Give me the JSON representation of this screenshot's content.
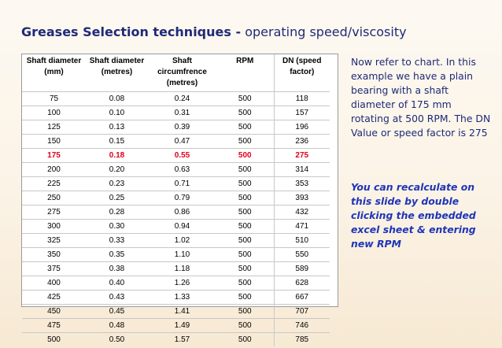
{
  "title": {
    "bold_part": "Greases Selection techniques -",
    "rest": " operating speed/viscosity"
  },
  "table": {
    "headers": [
      "Shaft diameter\n(mm)",
      "Shaft diameter\n(metres)",
      "Shaft\ncircumfrence\n(metres)",
      "RPM",
      "DN (speed\nfactor)"
    ],
    "rows": [
      [
        "75",
        "0.08",
        "0.24",
        "500",
        "118"
      ],
      [
        "100",
        "0.10",
        "0.31",
        "500",
        "157"
      ],
      [
        "125",
        "0.13",
        "0.39",
        "500",
        "196"
      ],
      [
        "150",
        "0.15",
        "0.47",
        "500",
        "236"
      ],
      [
        "175",
        "0.18",
        "0.55",
        "500",
        "275"
      ],
      [
        "200",
        "0.20",
        "0.63",
        "500",
        "314"
      ],
      [
        "225",
        "0.23",
        "0.71",
        "500",
        "353"
      ],
      [
        "250",
        "0.25",
        "0.79",
        "500",
        "393"
      ],
      [
        "275",
        "0.28",
        "0.86",
        "500",
        "432"
      ],
      [
        "300",
        "0.30",
        "0.94",
        "500",
        "471"
      ],
      [
        "325",
        "0.33",
        "1.02",
        "500",
        "510"
      ],
      [
        "350",
        "0.35",
        "1.10",
        "500",
        "550"
      ],
      [
        "375",
        "0.38",
        "1.18",
        "500",
        "589"
      ],
      [
        "400",
        "0.40",
        "1.26",
        "500",
        "628"
      ],
      [
        "425",
        "0.43",
        "1.33",
        "500",
        "667"
      ],
      [
        "450",
        "0.45",
        "1.41",
        "500",
        "707"
      ],
      [
        "475",
        "0.48",
        "1.49",
        "500",
        "746"
      ],
      [
        "500",
        "0.50",
        "1.57",
        "500",
        "785"
      ]
    ],
    "highlight_row_index": 4,
    "highlight_color": "#e0001b"
  },
  "side_text": "Now refer to chart.  In this example we have a plain bearing with a shaft diameter of 175 mm rotating at 500 RPM. The DN Value or speed factor is 275",
  "side_note": "You can recalculate on this slide by double clicking the embedded excel sheet & entering new RPM",
  "colors": {
    "title": "#1f2a78",
    "body_text": "#1e2a78",
    "note_text": "#1f35b8",
    "background": "#fbf3e6"
  }
}
